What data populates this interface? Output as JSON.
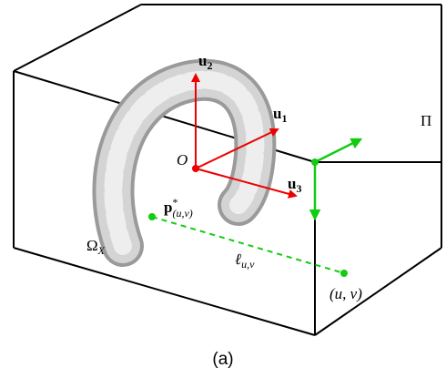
{
  "labels": {
    "u2": {
      "base": "u",
      "sub": "2"
    },
    "u1": {
      "base": "u",
      "sub": "1"
    },
    "u3": {
      "base": "u",
      "sub": "3"
    },
    "origin": "O",
    "plane": "Π",
    "point": {
      "base": "p",
      "sup": "*",
      "sub": "(u,v)"
    },
    "surface": {
      "base": "Ω",
      "sub": "X"
    },
    "ray": {
      "base": "ℓ",
      "sub": "u,v"
    },
    "pixel": "(u, v)"
  },
  "caption": "(a)"
}
